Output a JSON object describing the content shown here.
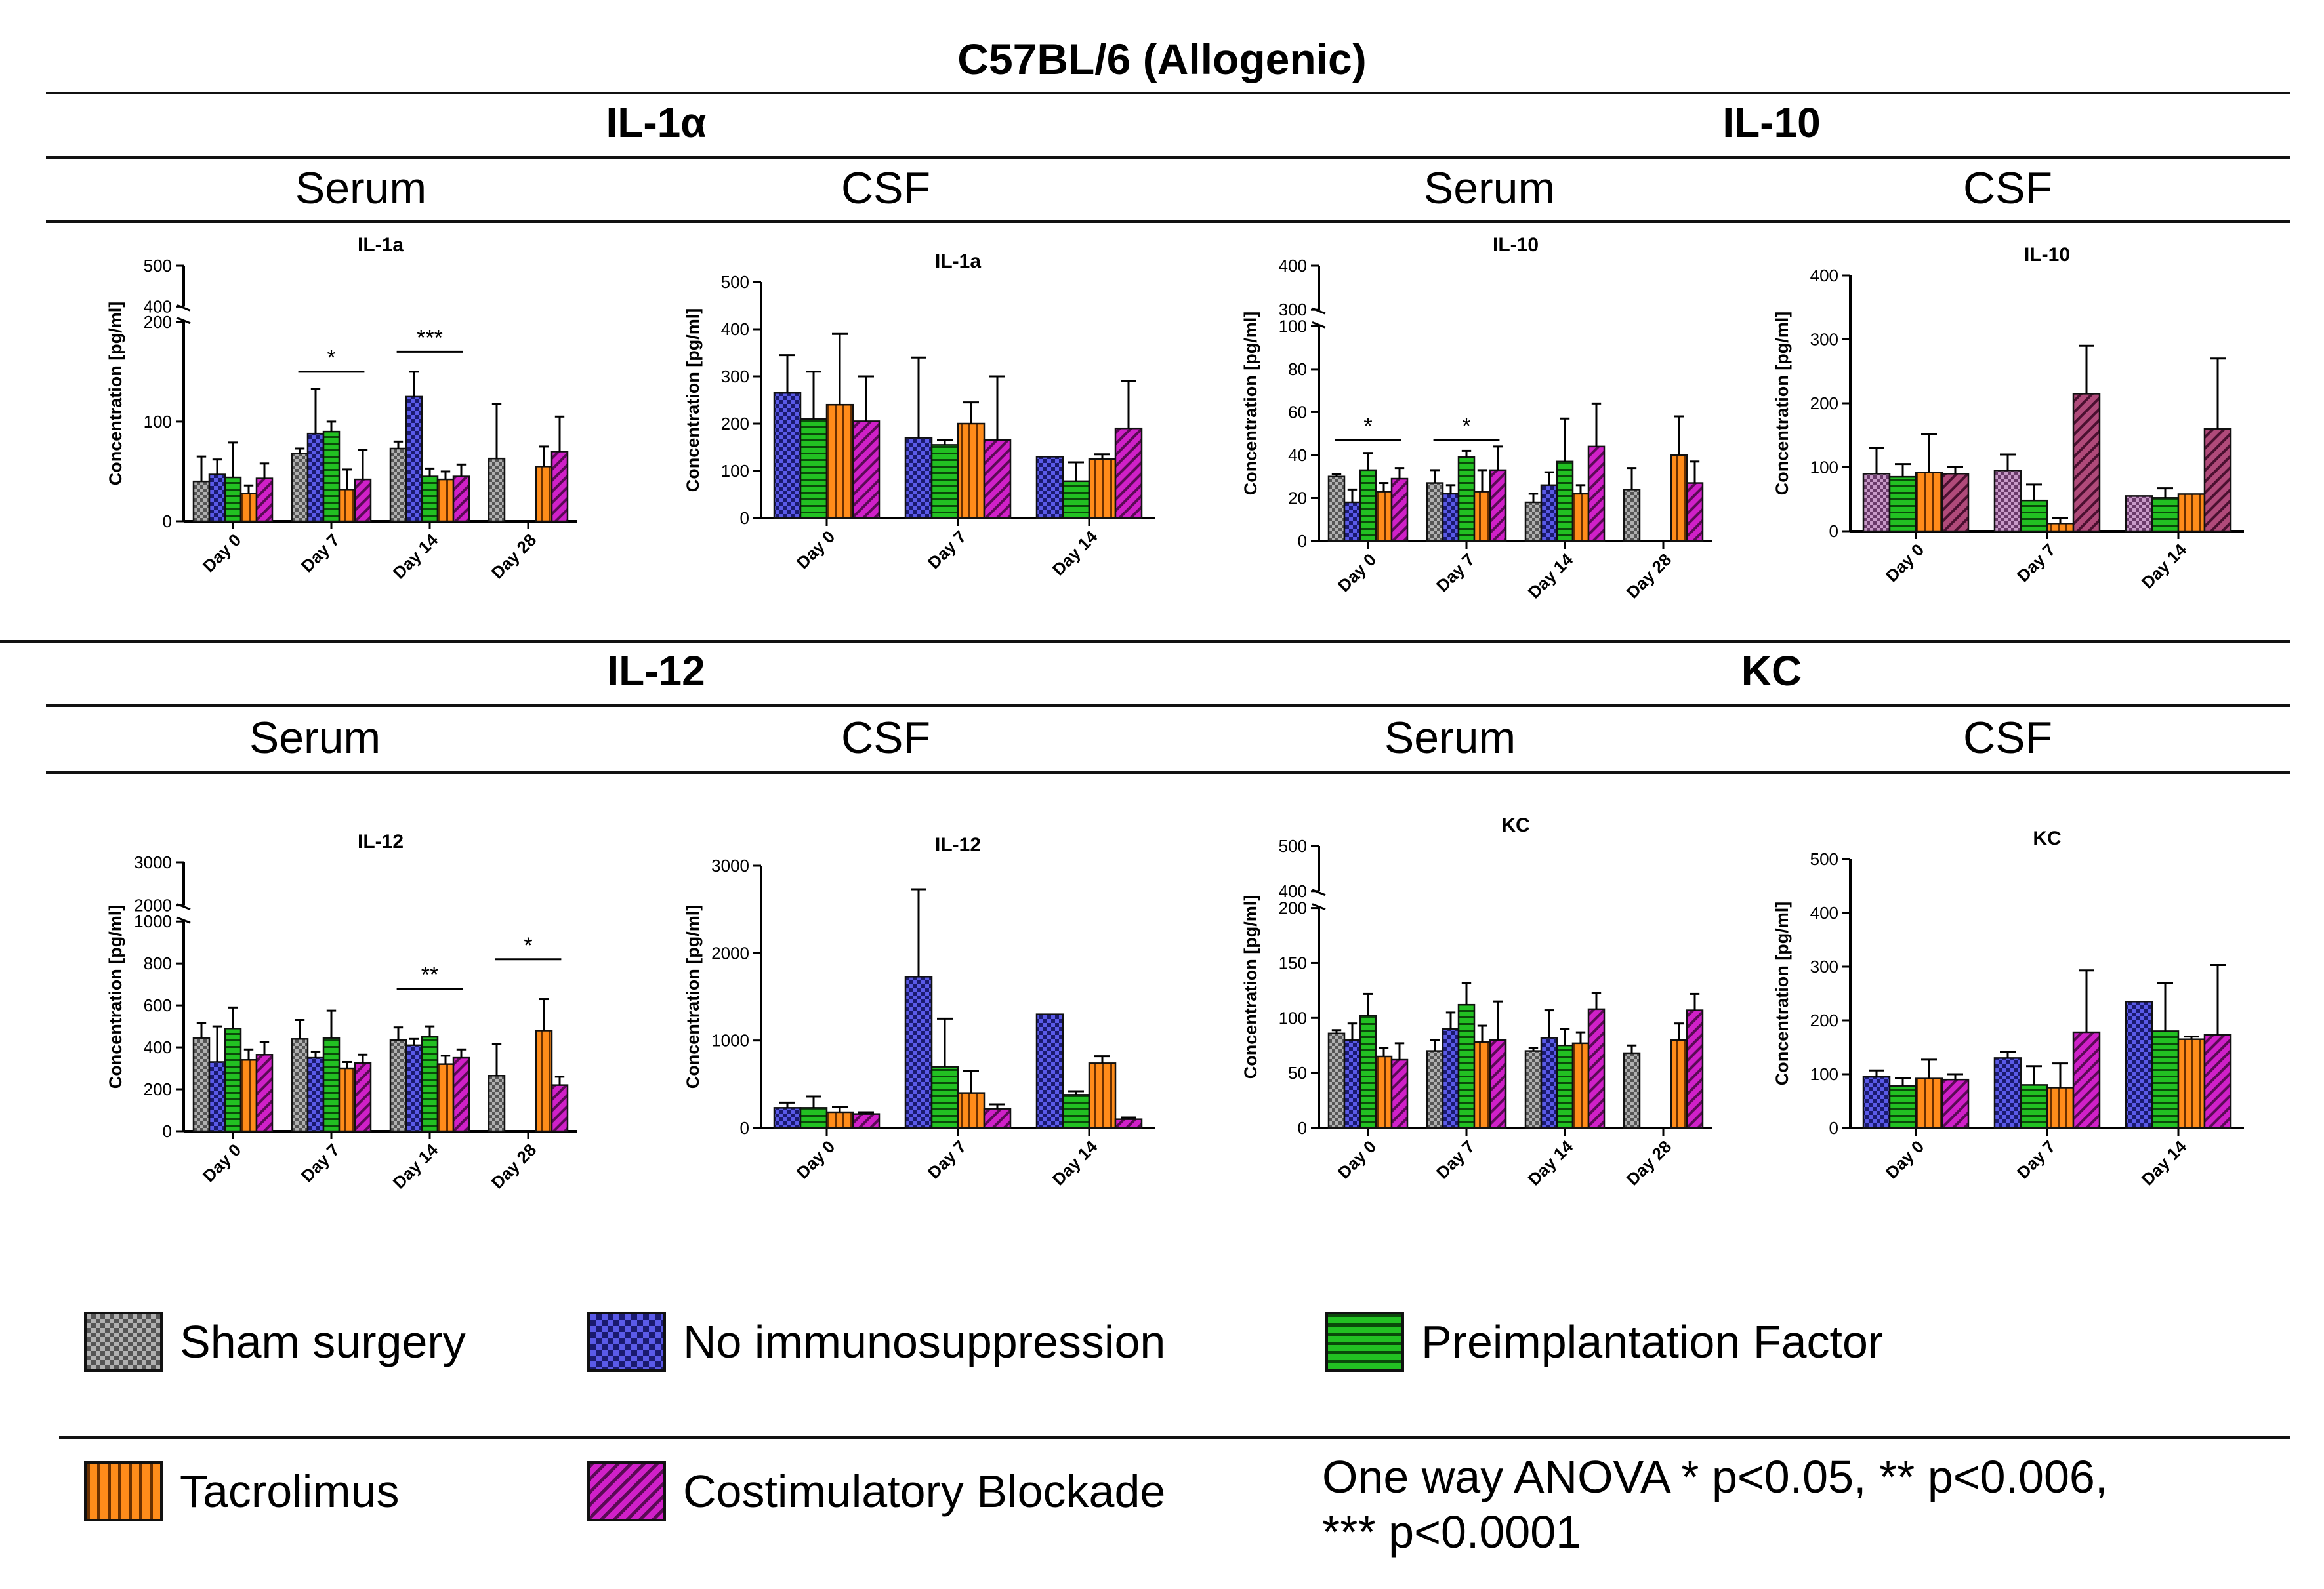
{
  "title": "C57BL/6 (Allogenic)",
  "stats_note": {
    "line1": "One way ANOVA * p<0.05, ** p<0.006,",
    "line2": "*** p<0.0001"
  },
  "colors": {
    "sham": "#9a9a9a",
    "noimm": "#4a4ad8",
    "pif": "#1fae1f",
    "tac": "#ff8c1a",
    "cb": "#c21cb8",
    "cb_dark": "#a33a6a",
    "sham_dark": "#8a5a8a"
  },
  "legend": [
    {
      "key": "sham",
      "label": "Sham surgery",
      "pattern": "pat-sham"
    },
    {
      "key": "noimm",
      "label": "No immunosuppression",
      "pattern": "pat-noimm"
    },
    {
      "key": "pif",
      "label": "Preimplantation Factor",
      "pattern": "pat-pif"
    },
    {
      "key": "tac",
      "label": "Tacrolimus",
      "pattern": "pat-tac"
    },
    {
      "key": "cb",
      "label": "Costimulatory Blockade",
      "pattern": "pat-cb"
    }
  ],
  "sections": [
    {
      "cytokine": "IL-1α",
      "fluids": [
        "Serum",
        "CSF"
      ]
    },
    {
      "cytokine": "IL-10",
      "fluids": [
        "Serum",
        "CSF"
      ]
    },
    {
      "cytokine": "IL-12",
      "fluids": [
        "Serum",
        "CSF"
      ]
    },
    {
      "cytokine": "KC",
      "fluids": [
        "Serum",
        "CSF"
      ]
    }
  ],
  "chart_data": [
    {
      "id": "il1a-serum",
      "type": "bar",
      "title": "IL-1a",
      "ylabel": "Concentration [pg/ml]",
      "categories": [
        "Day 0",
        "Day 7",
        "Day 14",
        "Day 28"
      ],
      "y_break": {
        "lower": [
          0,
          200
        ],
        "upper": [
          400,
          500
        ]
      },
      "yticks": [
        0,
        100,
        200,
        400,
        500
      ],
      "series": [
        {
          "name": "Sham surgery",
          "key": "sham",
          "values": [
            40,
            68,
            73,
            63
          ],
          "errors": [
            25,
            5,
            7,
            55
          ]
        },
        {
          "name": "No immunosuppression",
          "key": "noimm",
          "values": [
            47,
            88,
            125,
            null
          ],
          "errors": [
            15,
            45,
            25,
            null
          ]
        },
        {
          "name": "Preimplantation Factor",
          "key": "pif",
          "values": [
            44,
            90,
            45,
            null
          ],
          "errors": [
            35,
            10,
            8,
            null
          ]
        },
        {
          "name": "Tacrolimus",
          "key": "tac",
          "values": [
            28,
            32,
            42,
            55
          ],
          "errors": [
            8,
            20,
            8,
            20
          ]
        },
        {
          "name": "Costimulatory Blockade",
          "key": "cb",
          "values": [
            43,
            42,
            45,
            70
          ],
          "errors": [
            15,
            30,
            12,
            35
          ]
        }
      ],
      "significance": [
        {
          "label": "*",
          "from": 1,
          "to": 1,
          "y": 150
        },
        {
          "label": "***",
          "from": 2,
          "to": 2,
          "y": 170
        }
      ]
    },
    {
      "id": "il1a-csf",
      "type": "bar",
      "title": "IL-1a",
      "ylabel": "Concentration [pg/ml]",
      "categories": [
        "Day 0",
        "Day 7",
        "Day 14"
      ],
      "ylim": [
        0,
        500
      ],
      "yticks": [
        0,
        100,
        200,
        300,
        400,
        500
      ],
      "series": [
        {
          "name": "No immunosuppression",
          "key": "noimm",
          "values": [
            265,
            170,
            130
          ],
          "errors": [
            80,
            170,
            0
          ]
        },
        {
          "name": "Preimplantation Factor",
          "key": "pif",
          "values": [
            210,
            155,
            78
          ],
          "errors": [
            100,
            10,
            40
          ]
        },
        {
          "name": "Tacrolimus",
          "key": "tac",
          "values": [
            240,
            200,
            125
          ],
          "errors": [
            150,
            45,
            10
          ]
        },
        {
          "name": "Costimulatory Blockade",
          "key": "cb",
          "values": [
            205,
            165,
            190
          ],
          "errors": [
            95,
            135,
            100
          ]
        }
      ]
    },
    {
      "id": "il10-serum",
      "type": "bar",
      "title": "IL-10",
      "ylabel": "Concentration [pg/ml]",
      "categories": [
        "Day 0",
        "Day 7",
        "Day 14",
        "Day 28"
      ],
      "y_break": {
        "lower": [
          0,
          100
        ],
        "upper": [
          300,
          400
        ]
      },
      "yticks": [
        0,
        20,
        40,
        60,
        80,
        100,
        300,
        400
      ],
      "series": [
        {
          "name": "Sham surgery",
          "key": "sham",
          "values": [
            30,
            27,
            18,
            24
          ],
          "errors": [
            1,
            6,
            4,
            10
          ]
        },
        {
          "name": "No immunosuppression",
          "key": "noimm",
          "values": [
            18,
            22,
            26,
            null
          ],
          "errors": [
            6,
            4,
            6,
            null
          ]
        },
        {
          "name": "Preimplantation Factor",
          "key": "pif",
          "values": [
            33,
            39,
            37,
            null
          ],
          "errors": [
            8,
            3,
            20,
            null
          ]
        },
        {
          "name": "Tacrolimus",
          "key": "tac",
          "values": [
            23,
            23,
            22,
            40
          ],
          "errors": [
            4,
            10,
            4,
            18
          ]
        },
        {
          "name": "Costimulatory Blockade",
          "key": "cb",
          "values": [
            29,
            33,
            44,
            27
          ],
          "errors": [
            5,
            11,
            20,
            10
          ]
        }
      ],
      "significance": [
        {
          "label": "*",
          "from": 0,
          "to": 0,
          "y": 47
        },
        {
          "label": "*",
          "from": 1,
          "to": 1,
          "y": 47
        }
      ]
    },
    {
      "id": "il10-csf",
      "type": "bar",
      "title": "IL-10",
      "ylabel": "Concentration [pg/ml]",
      "categories": [
        "Day 0",
        "Day 7",
        "Day 14"
      ],
      "ylim": [
        0,
        400
      ],
      "yticks": [
        0,
        100,
        200,
        300,
        400
      ],
      "series": [
        {
          "name": "Sham surgery",
          "key": "sham_dark",
          "values": [
            90,
            95,
            55
          ],
          "errors": [
            40,
            25,
            0
          ]
        },
        {
          "name": "Preimplantation Factor",
          "key": "pif",
          "values": [
            85,
            48,
            52
          ],
          "errors": [
            20,
            25,
            15
          ]
        },
        {
          "name": "Tacrolimus",
          "key": "tac",
          "values": [
            92,
            12,
            58
          ],
          "errors": [
            60,
            8,
            0
          ]
        },
        {
          "name": "Costimulatory Blockade",
          "key": "cb_dark",
          "values": [
            90,
            215,
            160
          ],
          "errors": [
            10,
            75,
            110
          ]
        }
      ]
    },
    {
      "id": "il12-serum",
      "type": "bar",
      "title": "IL-12",
      "ylabel": "Concentration [pg/ml]",
      "categories": [
        "Day 0",
        "Day 7",
        "Day 14",
        "Day 28"
      ],
      "y_break": {
        "lower": [
          0,
          1000
        ],
        "upper": [
          2000,
          3000
        ]
      },
      "yticks": [
        0,
        200,
        400,
        600,
        800,
        1000,
        2000,
        3000
      ],
      "series": [
        {
          "name": "Sham surgery",
          "key": "sham",
          "values": [
            445,
            440,
            435,
            265
          ],
          "errors": [
            70,
            90,
            60,
            150
          ]
        },
        {
          "name": "No immunosuppression",
          "key": "noimm",
          "values": [
            330,
            350,
            410,
            null
          ],
          "errors": [
            170,
            30,
            30,
            null
          ]
        },
        {
          "name": "Preimplantation Factor",
          "key": "pif",
          "values": [
            490,
            445,
            450,
            null
          ],
          "errors": [
            100,
            130,
            50,
            null
          ]
        },
        {
          "name": "Tacrolimus",
          "key": "tac",
          "values": [
            340,
            300,
            320,
            480
          ],
          "errors": [
            50,
            30,
            40,
            150
          ]
        },
        {
          "name": "Costimulatory Blockade",
          "key": "cb",
          "values": [
            365,
            325,
            350,
            220
          ],
          "errors": [
            60,
            40,
            40,
            40
          ]
        }
      ],
      "significance": [
        {
          "label": "**",
          "from": 2,
          "to": 2,
          "y": 680
        },
        {
          "label": "*",
          "from": 3,
          "to": 3,
          "y": 820
        }
      ]
    },
    {
      "id": "il12-csf",
      "type": "bar",
      "title": "IL-12",
      "ylabel": "Concentration [pg/ml]",
      "categories": [
        "Day 0",
        "Day 7",
        "Day 14"
      ],
      "ylim": [
        0,
        3000
      ],
      "yticks": [
        0,
        1000,
        2000,
        3000
      ],
      "series": [
        {
          "name": "No immunosuppression",
          "key": "noimm",
          "values": [
            230,
            1730,
            1300
          ],
          "errors": [
            60,
            1000,
            0
          ]
        },
        {
          "name": "Preimplantation Factor",
          "key": "pif",
          "values": [
            230,
            700,
            380
          ],
          "errors": [
            130,
            550,
            40
          ]
        },
        {
          "name": "Tacrolimus",
          "key": "tac",
          "values": [
            180,
            400,
            740
          ],
          "errors": [
            60,
            250,
            80
          ]
        },
        {
          "name": "Costimulatory Blockade",
          "key": "cb",
          "values": [
            160,
            220,
            100
          ],
          "errors": [
            20,
            50,
            20
          ]
        }
      ]
    },
    {
      "id": "kc-serum",
      "type": "bar",
      "title": "KC",
      "ylabel": "Concentration [pg/ml]",
      "categories": [
        "Day 0",
        "Day 7",
        "Day 14",
        "Day 28"
      ],
      "y_break": {
        "lower": [
          0,
          200
        ],
        "upper": [
          400,
          500
        ]
      },
      "yticks": [
        0,
        50,
        100,
        150,
        200,
        400,
        500
      ],
      "series": [
        {
          "name": "Sham surgery",
          "key": "sham",
          "values": [
            86,
            70,
            70,
            68
          ],
          "errors": [
            3,
            10,
            3,
            7
          ]
        },
        {
          "name": "No immunosuppression",
          "key": "noimm",
          "values": [
            80,
            90,
            82,
            null
          ],
          "errors": [
            15,
            15,
            25,
            null
          ]
        },
        {
          "name": "Preimplantation Factor",
          "key": "pif",
          "values": [
            102,
            112,
            75,
            null
          ],
          "errors": [
            20,
            20,
            15,
            null
          ]
        },
        {
          "name": "Tacrolimus",
          "key": "tac",
          "values": [
            65,
            78,
            77,
            80
          ],
          "errors": [
            8,
            15,
            10,
            15
          ]
        },
        {
          "name": "Costimulatory Blockade",
          "key": "cb",
          "values": [
            62,
            80,
            108,
            107
          ],
          "errors": [
            15,
            35,
            15,
            15
          ]
        }
      ]
    },
    {
      "id": "kc-csf",
      "type": "bar",
      "title": "KC",
      "ylabel": "Concentration [pg/ml]",
      "categories": [
        "Day 0",
        "Day 7",
        "Day 14"
      ],
      "ylim": [
        0,
        500
      ],
      "yticks": [
        0,
        100,
        200,
        300,
        400,
        500
      ],
      "series": [
        {
          "name": "No immunosuppression",
          "key": "noimm",
          "values": [
            95,
            130,
            235
          ],
          "errors": [
            12,
            12,
            0
          ]
        },
        {
          "name": "Preimplantation Factor",
          "key": "pif",
          "values": [
            78,
            80,
            180
          ],
          "errors": [
            15,
            35,
            90
          ]
        },
        {
          "name": "Tacrolimus",
          "key": "tac",
          "values": [
            92,
            75,
            165
          ],
          "errors": [
            35,
            45,
            5
          ]
        },
        {
          "name": "Costimulatory Blockade",
          "key": "cb",
          "values": [
            90,
            178,
            173
          ],
          "errors": [
            10,
            115,
            130
          ]
        }
      ]
    }
  ]
}
